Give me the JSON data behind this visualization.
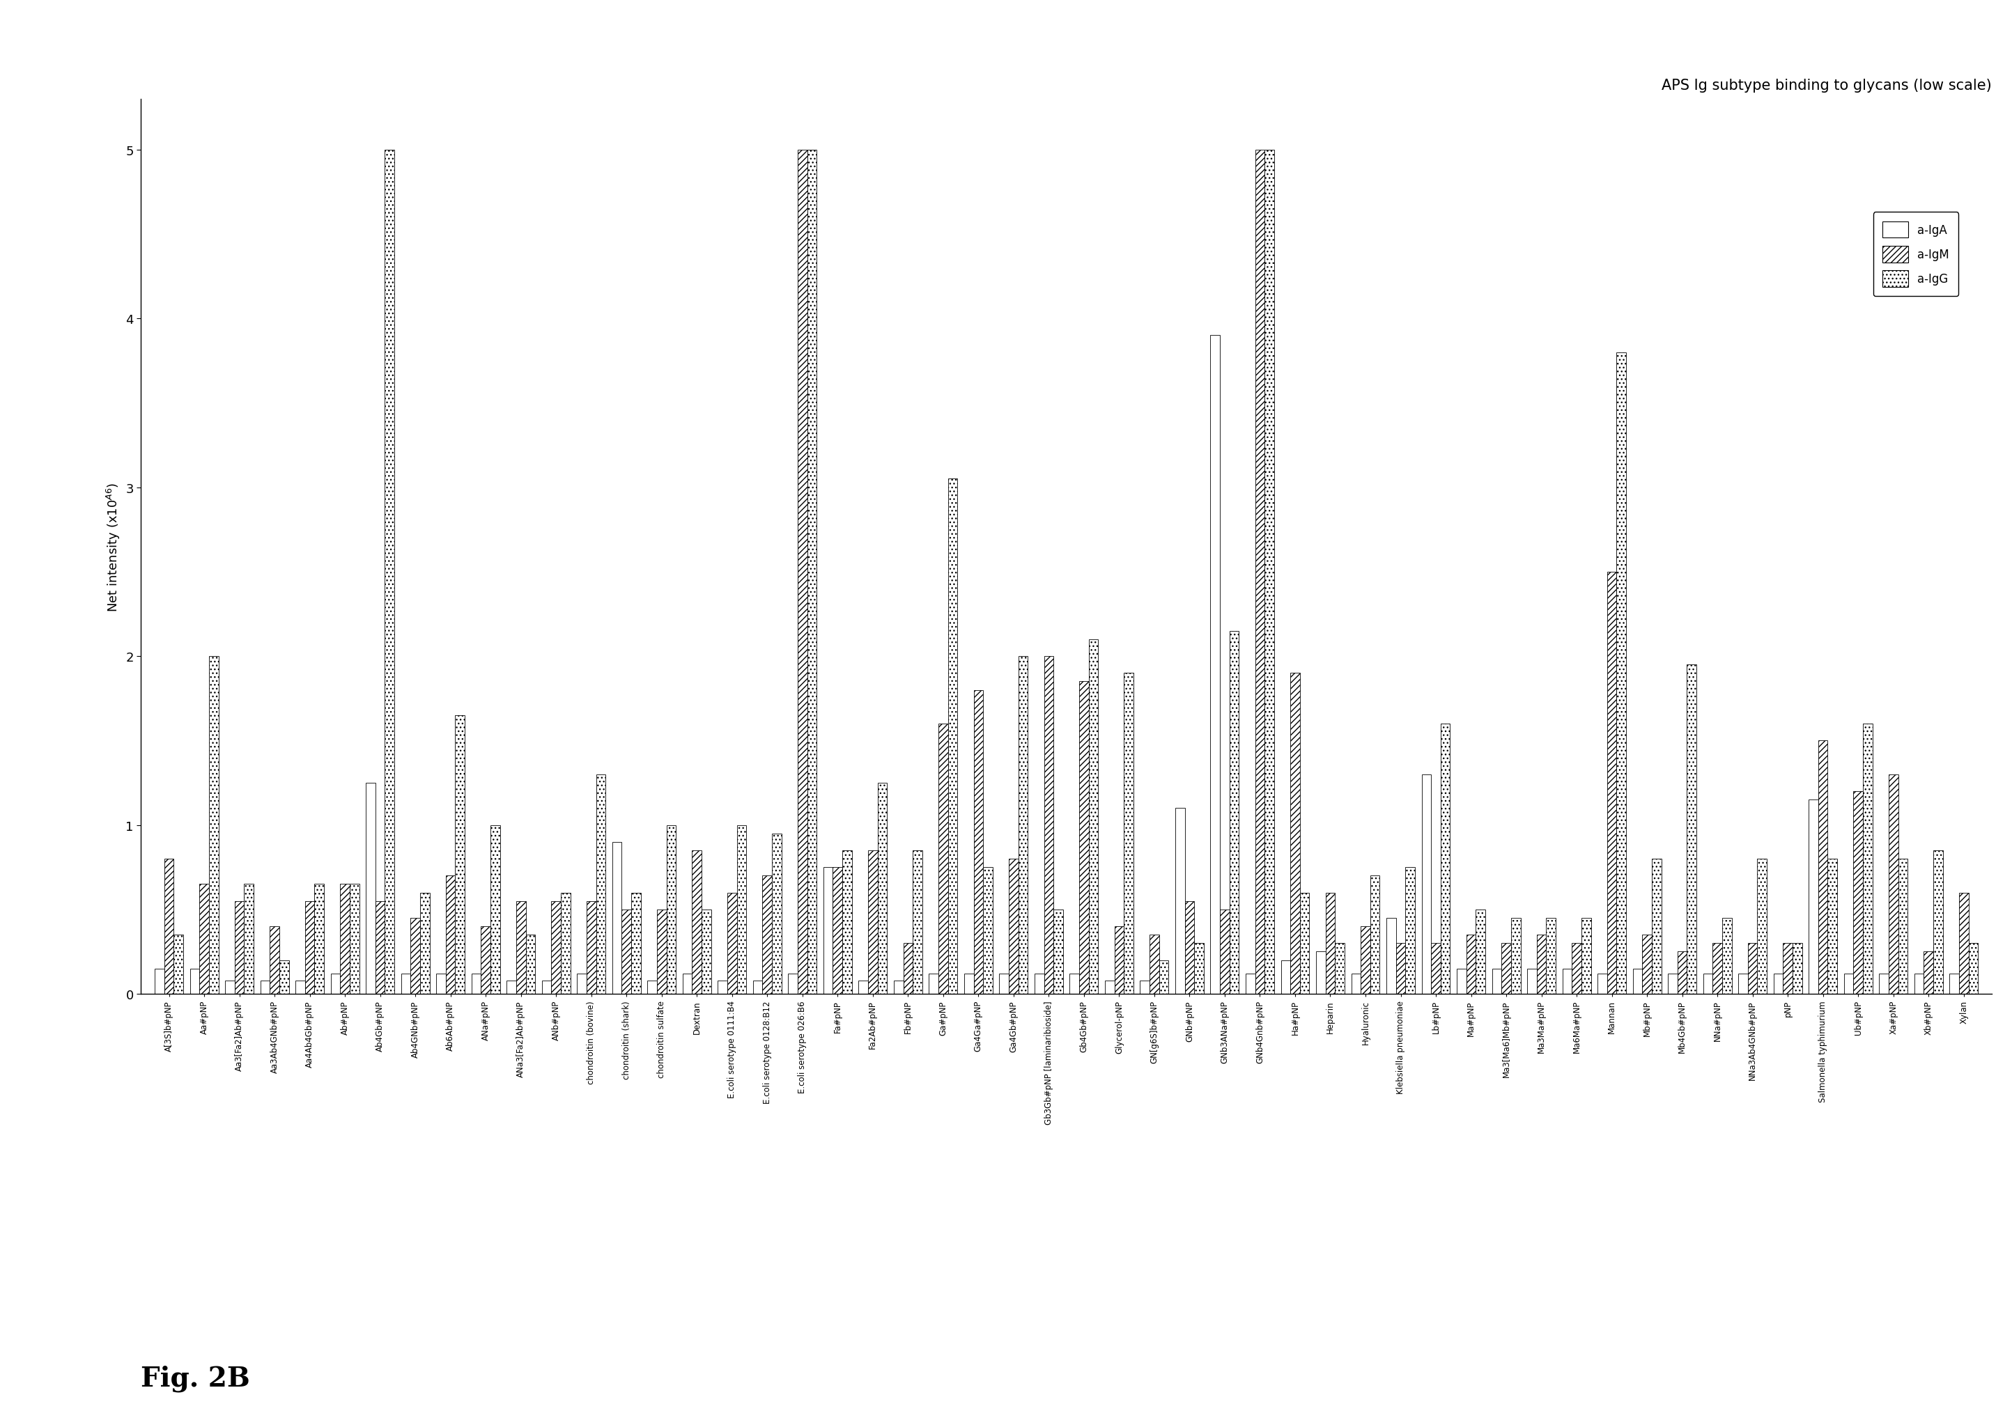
{
  "title": "APS Ig subtype binding to glycans (low scale)",
  "ylabel": "Net intensity (x10ᴬ6)",
  "ylim": [
    0,
    5.3
  ],
  "yticks": [
    0,
    1,
    2,
    3,
    4,
    5
  ],
  "fig_label": "Fig. 2B",
  "bar_width": 0.27,
  "legend": [
    "a-IgA",
    "a-IgM",
    "a-IgG"
  ],
  "categories": [
    "A[3S]b#pNP",
    "Aa#pNP",
    "Aa3[Fa2]Ab#pNP",
    "Aa3Ab4GNb#pNP",
    "Aa4Ab4Gb#pNP",
    "Ab#pNP",
    "Ab4Gb#pNP",
    "Ab4GNb#pNP",
    "Ab6Ab#pNP",
    "ANa#pNP",
    "ANa3[Fa2]Ab#pNP",
    "ANb#pNP",
    "chondroitin (bovine)",
    "chondroitin (shark)",
    "chondroitin sulfate",
    "Dextran",
    "E.coli serotype 0111:B4",
    "E.coli serotype 0128:B12",
    "E.coli serotype 026:B6",
    "Fa#pNP",
    "Fa2Ab#pNP",
    "Fb#pNP",
    "Ga#pNP",
    "Ga4Ga#pNP",
    "Ga4Gb#pNP",
    "Gb3Gb#pNP [laminaribioside]",
    "Gb4Gb#pNP",
    "Glycerol-pNP",
    "GN[g6S]b#pNP",
    "GNb#pNP",
    "GNb3ANa#pNP",
    "GNb4Gnb#pNP",
    "Ha#pNP",
    "Heparin",
    "Hyaluronic",
    "Klebsiella pneumoniae",
    "Lb#pNP",
    "Ma#pNP",
    "Ma3[Ma6]Mb#pNP",
    "Ma3Ma#pNP",
    "Ma6Ma#pNP",
    "Mannan",
    "Mb#pNP",
    "Mb4Gb#pNP",
    "NNa#pNP",
    "NNa3Ab4GNb#pNP",
    "pNP",
    "Salmonella typhimurium",
    "Ub#pNP",
    "Xa#pNP",
    "Xb#pNP",
    "Xylan"
  ],
  "IgA": [
    0.15,
    0.15,
    0.08,
    0.08,
    0.08,
    0.12,
    1.25,
    0.12,
    0.12,
    0.12,
    0.08,
    0.08,
    0.12,
    0.9,
    0.08,
    0.12,
    0.08,
    0.08,
    0.12,
    0.75,
    0.08,
    0.08,
    0.12,
    0.12,
    0.12,
    0.12,
    0.12,
    0.08,
    0.08,
    1.1,
    3.9,
    0.12,
    0.2,
    0.25,
    0.12,
    0.45,
    1.3,
    0.15,
    0.15,
    0.15,
    0.15,
    0.12,
    0.15,
    0.12,
    0.12,
    0.12,
    0.12,
    1.15,
    0.12,
    0.12,
    0.12,
    0.12
  ],
  "IgM": [
    0.8,
    0.65,
    0.55,
    0.4,
    0.55,
    0.65,
    0.55,
    0.45,
    0.7,
    0.4,
    0.55,
    0.55,
    0.55,
    0.5,
    0.5,
    0.85,
    0.6,
    0.7,
    5.0,
    0.75,
    0.85,
    0.3,
    1.6,
    1.8,
    0.8,
    2.0,
    1.85,
    0.4,
    0.35,
    0.55,
    0.5,
    5.0,
    1.9,
    0.6,
    0.4,
    0.3,
    0.3,
    0.35,
    0.3,
    0.35,
    0.3,
    2.5,
    0.35,
    0.25,
    0.3,
    0.3,
    0.3,
    1.5,
    1.2,
    1.3,
    0.25,
    0.6
  ],
  "IgG": [
    0.35,
    2.0,
    0.65,
    0.2,
    0.65,
    0.65,
    5.0,
    0.6,
    1.65,
    1.0,
    0.35,
    0.6,
    1.3,
    0.6,
    1.0,
    0.5,
    1.0,
    0.95,
    5.0,
    0.85,
    1.25,
    0.85,
    3.05,
    0.75,
    2.0,
    0.5,
    2.1,
    1.9,
    0.2,
    0.3,
    2.15,
    5.0,
    0.6,
    0.3,
    0.7,
    0.75,
    1.6,
    0.5,
    0.45,
    0.45,
    0.45,
    3.8,
    0.8,
    1.95,
    0.45,
    0.8,
    0.3,
    0.8,
    1.6,
    0.8,
    0.85,
    0.3
  ]
}
